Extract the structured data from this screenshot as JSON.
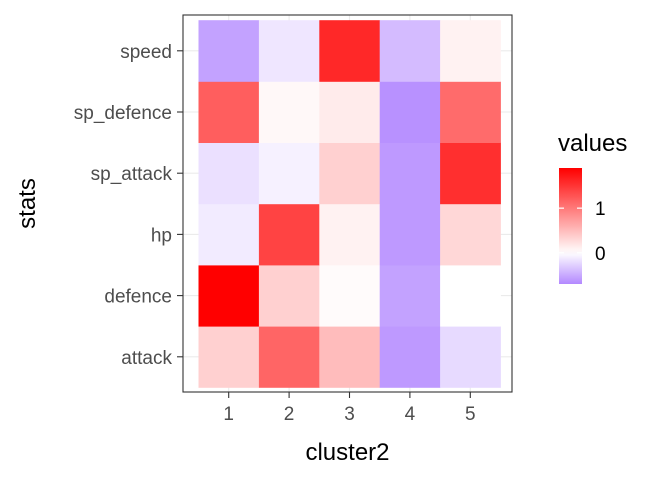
{
  "chart_data": {
    "type": "heatmap",
    "xlabel": "cluster2",
    "ylabel": "stats",
    "x_categories": [
      "1",
      "2",
      "3",
      "4",
      "5"
    ],
    "y_categories": [
      "attack",
      "defence",
      "hp",
      "sp_attack",
      "sp_defence",
      "speed"
    ],
    "values": {
      "speed": [
        -0.55,
        -0.15,
        1.6,
        -0.4,
        0.1
      ],
      "sp_defence": [
        1.2,
        0.05,
        0.15,
        -0.65,
        1.1
      ],
      "sp_attack": [
        -0.18,
        -0.08,
        0.35,
        -0.6,
        1.55
      ],
      "hp": [
        -0.12,
        1.4,
        0.1,
        -0.6,
        0.3
      ],
      "defence": [
        1.9,
        0.35,
        0.03,
        -0.55,
        0.0
      ],
      "attack": [
        0.35,
        1.15,
        0.5,
        -0.6,
        -0.22
      ]
    },
    "legend": {
      "title": "values",
      "position": "right",
      "breaks": [
        {
          "value": 1,
          "label": "1"
        },
        {
          "value": 0,
          "label": "0"
        }
      ],
      "range": [
        -0.7,
        1.9
      ]
    },
    "colors": {
      "low": "#b388ff",
      "mid": "#ffffff",
      "high": "#ff0000"
    },
    "grid": true,
    "panel_border": true
  }
}
